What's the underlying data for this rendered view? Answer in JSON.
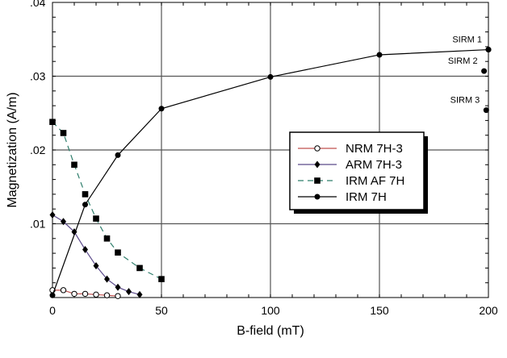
{
  "chart_data": {
    "type": "line",
    "xlabel": "B-field (mT)",
    "ylabel": "Magnetization (A/m)",
    "xlim": [
      0,
      200
    ],
    "ylim": [
      0,
      0.04
    ],
    "x_ticks": [
      0,
      50,
      100,
      150,
      200
    ],
    "x_tick_labels": [
      "0",
      "50",
      "100",
      "150",
      "200"
    ],
    "y_ticks": [
      0.01,
      0.02,
      0.03,
      0.04
    ],
    "y_tick_labels": [
      ".01",
      ".02",
      ".03",
      ".04"
    ],
    "grid": true,
    "legend_position": "center-right",
    "series": [
      {
        "name": "NRM 7H-3",
        "color": "#c0504d",
        "marker": "open-circle",
        "dash": "solid",
        "x": [
          0,
          5,
          10,
          15,
          20,
          25,
          30
        ],
        "y": [
          0.001,
          0.001,
          0.0005,
          0.0005,
          0.0004,
          0.0003,
          0.0002
        ]
      },
      {
        "name": "ARM 7H-3",
        "color": "#5b4a8a",
        "marker": "diamond",
        "dash": "solid",
        "x": [
          0,
          5,
          10,
          15,
          20,
          25,
          30,
          35,
          40
        ],
        "y": [
          0.0112,
          0.0103,
          0.0089,
          0.0065,
          0.0043,
          0.0025,
          0.0014,
          0.0008,
          0.0004
        ]
      },
      {
        "name": "IRM AF 7H",
        "color": "#2e7d6b",
        "marker": "square",
        "dash": "dashed",
        "x": [
          0,
          5,
          10,
          15,
          20,
          25,
          30,
          40,
          50
        ],
        "y": [
          0.0238,
          0.0223,
          0.018,
          0.014,
          0.0107,
          0.008,
          0.0061,
          0.004,
          0.0025
        ]
      },
      {
        "name": "IRM 7H",
        "color": "#000000",
        "marker": "filled-circle",
        "dash": "solid",
        "x": [
          0,
          15,
          30,
          50,
          100,
          150,
          200
        ],
        "y": [
          0.0003,
          0.0126,
          0.0193,
          0.0256,
          0.0299,
          0.0329,
          0.0336
        ]
      }
    ],
    "annotations": [
      {
        "label": "SIRM  1",
        "x": 200,
        "y": 0.0336
      },
      {
        "label": "SIRM  2",
        "x": 198,
        "y": 0.0307
      },
      {
        "label": "SIRM  3",
        "x": 199,
        "y": 0.0254
      }
    ]
  }
}
